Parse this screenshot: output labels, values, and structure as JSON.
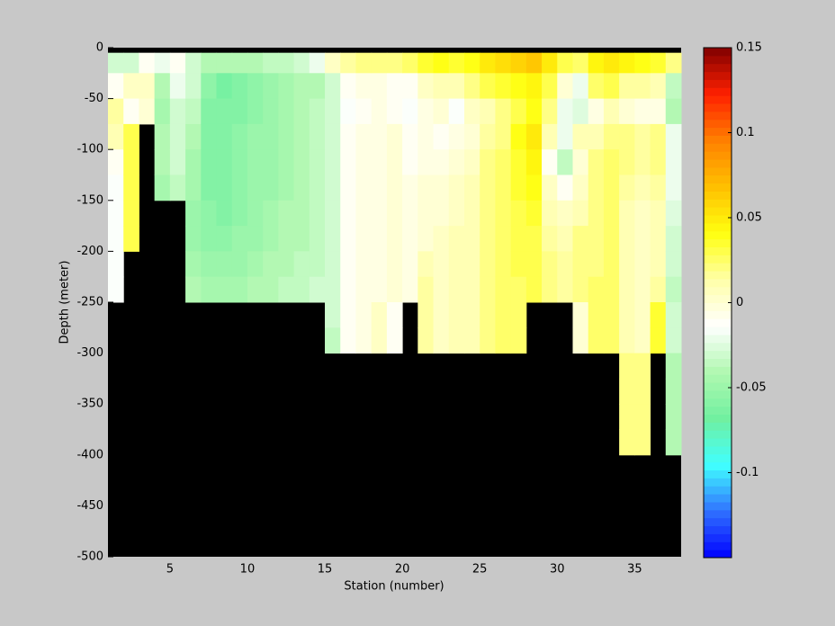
{
  "chart_data": {
    "type": "heatmap",
    "xlabel": "Station (number)",
    "ylabel": "Depth (meter)",
    "x_edges": [
      1,
      2,
      3,
      4,
      5,
      6,
      7,
      8,
      9,
      10,
      11,
      12,
      13,
      14,
      15,
      16,
      17,
      18,
      19,
      20,
      21,
      22,
      23,
      24,
      25,
      26,
      27,
      28,
      29,
      30,
      31,
      32,
      33,
      34,
      35,
      36,
      37,
      38
    ],
    "y_edges": [
      -5,
      -25,
      -50,
      -75,
      -100,
      -125,
      -150,
      -175,
      -200,
      -225,
      -250,
      -275,
      -300,
      -325,
      -350,
      -375,
      -400,
      -425,
      -450,
      -475,
      -500
    ],
    "values": [
      [
        -0.03,
        -0.01,
        0.015,
        0.01,
        -0.01,
        -0.015,
        -0.015,
        -0.015,
        -0.015,
        -0.015,
        null,
        null,
        null,
        null,
        null,
        null,
        null,
        null,
        null,
        null
      ],
      [
        -0.03,
        0.005,
        -0.01,
        0.03,
        0.03,
        0.03,
        0.03,
        0.03,
        null,
        null,
        null,
        null,
        null,
        null,
        null,
        null,
        null,
        null,
        null,
        null
      ],
      [
        -0.01,
        0.005,
        0,
        null,
        null,
        null,
        null,
        null,
        null,
        null,
        null,
        null,
        null,
        null,
        null,
        null,
        null,
        null,
        null,
        null
      ],
      [
        -0.02,
        -0.04,
        -0.045,
        -0.04,
        -0.04,
        -0.045,
        null,
        null,
        null,
        null,
        null,
        null,
        null,
        null,
        null,
        null,
        null,
        null,
        null,
        null
      ],
      [
        -0.01,
        -0.02,
        -0.03,
        -0.03,
        -0.03,
        -0.035,
        null,
        null,
        null,
        null,
        null,
        null,
        null,
        null,
        null,
        null,
        null,
        null,
        null,
        null
      ],
      [
        -0.03,
        -0.03,
        -0.035,
        -0.04,
        -0.045,
        -0.045,
        -0.05,
        -0.05,
        -0.045,
        -0.04,
        null,
        null,
        null,
        null,
        null,
        null,
        null,
        null,
        null,
        null
      ],
      [
        -0.04,
        -0.055,
        -0.06,
        -0.06,
        -0.06,
        -0.06,
        -0.055,
        -0.055,
        -0.05,
        -0.045,
        null,
        null,
        null,
        null,
        null,
        null,
        null,
        null,
        null,
        null
      ],
      [
        -0.04,
        -0.065,
        -0.06,
        -0.06,
        -0.06,
        -0.06,
        -0.06,
        -0.055,
        -0.05,
        -0.045,
        null,
        null,
        null,
        null,
        null,
        null,
        null,
        null,
        null,
        null
      ],
      [
        -0.04,
        -0.06,
        -0.06,
        -0.055,
        -0.055,
        -0.055,
        -0.055,
        -0.05,
        -0.05,
        -0.045,
        null,
        null,
        null,
        null,
        null,
        null,
        null,
        null,
        null,
        null
      ],
      [
        -0.04,
        -0.055,
        -0.055,
        -0.05,
        -0.05,
        -0.05,
        -0.05,
        -0.05,
        -0.045,
        -0.04,
        null,
        null,
        null,
        null,
        null,
        null,
        null,
        null,
        null,
        null
      ],
      [
        -0.035,
        -0.05,
        -0.05,
        -0.05,
        -0.05,
        -0.05,
        -0.045,
        -0.045,
        -0.04,
        -0.04,
        null,
        null,
        null,
        null,
        null,
        null,
        null,
        null,
        null,
        null
      ],
      [
        -0.035,
        -0.045,
        -0.045,
        -0.045,
        -0.045,
        -0.045,
        -0.04,
        -0.04,
        -0.04,
        -0.035,
        null,
        null,
        null,
        null,
        null,
        null,
        null,
        null,
        null,
        null
      ],
      [
        -0.03,
        -0.04,
        -0.04,
        -0.04,
        -0.04,
        -0.04,
        -0.04,
        -0.04,
        -0.035,
        -0.035,
        null,
        null,
        null,
        null,
        null,
        null,
        null,
        null,
        null,
        null
      ],
      [
        -0.02,
        -0.04,
        -0.035,
        -0.035,
        -0.035,
        -0.035,
        -0.035,
        -0.035,
        -0.035,
        -0.03,
        null,
        null,
        null,
        null,
        null,
        null,
        null,
        null,
        null,
        null
      ],
      [
        0.005,
        -0.03,
        -0.03,
        -0.03,
        -0.03,
        -0.03,
        -0.03,
        -0.03,
        -0.03,
        -0.03,
        -0.03,
        -0.035,
        null,
        null,
        null,
        null,
        null,
        null,
        null,
        null
      ],
      [
        0.015,
        -0.01,
        -0.015,
        -0.01,
        -0.01,
        -0.01,
        -0.01,
        -0.01,
        -0.01,
        -0.01,
        -0.01,
        -0.01,
        null,
        null,
        null,
        null,
        null,
        null,
        null,
        null
      ],
      [
        0.02,
        -0.005,
        -0.01,
        -0.005,
        -0.005,
        -0.005,
        -0.005,
        -0.005,
        -0.005,
        -0.005,
        -0.005,
        -0.005,
        null,
        null,
        null,
        null,
        null,
        null,
        null,
        null
      ],
      [
        0.02,
        -0.005,
        -0.005,
        -0.005,
        -0.005,
        -0.005,
        -0.005,
        -0.005,
        -0.005,
        -0.005,
        0.005,
        0.005,
        null,
        null,
        null,
        null,
        null,
        null,
        null,
        null
      ],
      [
        0.02,
        -0.01,
        -0.01,
        0,
        0,
        0,
        0,
        0,
        0,
        0,
        -0.01,
        -0.01,
        null,
        null,
        null,
        null,
        null,
        null,
        null,
        null
      ],
      [
        0.025,
        -0.01,
        -0.015,
        -0.01,
        -0.01,
        -0.005,
        -0.005,
        -0.005,
        -0.005,
        -0.005,
        null,
        null,
        null,
        null,
        null,
        null,
        null,
        null,
        null,
        null
      ],
      [
        0.035,
        0.005,
        -0.005,
        -0.005,
        -0.005,
        0,
        0,
        0,
        0.01,
        0.015,
        0.015,
        0.015,
        null,
        null,
        null,
        null,
        null,
        null,
        null,
        null
      ],
      [
        0.04,
        0.01,
        0,
        -0.01,
        -0.005,
        0,
        0,
        0.005,
        0.005,
        0.005,
        0.005,
        0.005,
        null,
        null,
        null,
        null,
        null,
        null,
        null,
        null
      ],
      [
        0.035,
        0.01,
        -0.015,
        -0.005,
        0,
        0.005,
        0.005,
        0.01,
        0.01,
        0.01,
        0.01,
        0.01,
        null,
        null,
        null,
        null,
        null,
        null,
        null,
        null
      ],
      [
        0.04,
        0.02,
        0.005,
        0,
        0.005,
        0.01,
        0.01,
        0.01,
        0.01,
        0.01,
        0.01,
        0.01,
        null,
        null,
        null,
        null,
        null,
        null,
        null,
        null
      ],
      [
        0.05,
        0.03,
        0.01,
        0.015,
        0.02,
        0.02,
        0.02,
        0.02,
        0.02,
        0.02,
        0.02,
        0.02,
        null,
        null,
        null,
        null,
        null,
        null,
        null,
        null
      ],
      [
        0.055,
        0.035,
        0.02,
        0.02,
        0.025,
        0.025,
        0.025,
        0.025,
        0.025,
        0.025,
        0.025,
        0.025,
        null,
        null,
        null,
        null,
        null,
        null,
        null,
        null
      ],
      [
        0.06,
        0.04,
        0.03,
        0.04,
        0.035,
        0.035,
        0.03,
        0.03,
        0.03,
        0.025,
        0.025,
        0.025,
        null,
        null,
        null,
        null,
        null,
        null,
        null,
        null
      ],
      [
        0.065,
        0.045,
        0.04,
        0.05,
        0.045,
        0.04,
        0.035,
        0.03,
        0.03,
        0.03,
        null,
        null,
        null,
        null,
        null,
        null,
        null,
        null,
        null,
        null
      ],
      [
        0.05,
        0.03,
        0.02,
        0.01,
        -0.01,
        0.005,
        0.01,
        0.015,
        0.02,
        0.02,
        null,
        null,
        null,
        null,
        null,
        null,
        null,
        null,
        null,
        null
      ],
      [
        0.03,
        0,
        -0.02,
        -0.02,
        -0.035,
        -0.01,
        0.005,
        0.01,
        0.015,
        0.015,
        null,
        null,
        null,
        null,
        null,
        null,
        null,
        null,
        null,
        null
      ],
      [
        0.025,
        -0.02,
        -0.025,
        0.01,
        0,
        0.005,
        0.01,
        0.02,
        0.02,
        0.02,
        0,
        0,
        null,
        null,
        null,
        null,
        null,
        null,
        null,
        null
      ],
      [
        0.045,
        0.025,
        -0.005,
        0.01,
        0.02,
        0.02,
        0.02,
        0.02,
        0.02,
        0.025,
        0.025,
        0.025,
        null,
        null,
        null,
        null,
        null,
        null,
        null,
        null
      ],
      [
        0.05,
        0.03,
        0.01,
        0.02,
        0.025,
        0.025,
        0.025,
        0.025,
        0.025,
        0.025,
        0.025,
        0.025,
        null,
        null,
        null,
        null,
        null,
        null,
        null,
        null
      ],
      [
        0.045,
        0.015,
        0,
        0.02,
        0.02,
        0.015,
        0.01,
        0.01,
        0.01,
        0.01,
        0.01,
        0.01,
        0.02,
        0.02,
        0.02,
        0.02,
        null,
        null,
        null,
        null
      ],
      [
        0.04,
        0.015,
        -0.005,
        0.015,
        0.015,
        0.01,
        0.005,
        0.005,
        0.005,
        0.005,
        0.005,
        0.005,
        0.02,
        0.02,
        0.02,
        0.02,
        null,
        null,
        null,
        null
      ],
      [
        0.035,
        0.01,
        -0.005,
        0.02,
        0.02,
        0.015,
        0.01,
        0.01,
        0.01,
        0.015,
        0.035,
        0.035,
        null,
        null,
        null,
        null,
        null,
        null,
        null,
        null
      ],
      [
        0.02,
        -0.035,
        -0.04,
        -0.02,
        -0.02,
        -0.02,
        -0.025,
        -0.03,
        -0.03,
        -0.035,
        -0.03,
        -0.03,
        -0.04,
        -0.04,
        -0.04,
        -0.04,
        null,
        null,
        null,
        null
      ]
    ],
    "xlim": [
      1,
      38
    ],
    "xticks": [
      5,
      10,
      15,
      20,
      25,
      30,
      35
    ],
    "ylim": [
      -500,
      0
    ],
    "yticks": [
      0,
      -50,
      -100,
      -150,
      -200,
      -250,
      -300,
      -350,
      -400,
      -450,
      -500
    ],
    "clim": [
      -0.15,
      0.15
    ],
    "cticks": [
      0.15,
      0.1,
      0.05,
      0,
      -0.05,
      -0.1
    ],
    "colormap": [
      "#0000ff",
      "#3070ff",
      "#40ffff",
      "#70f0a0",
      "#b0f8b0",
      "#ffffff",
      "#ffffa8",
      "#ffff10",
      "#ffc000",
      "#ff8000",
      "#ff2000",
      "#800000"
    ],
    "background": "#000000"
  }
}
